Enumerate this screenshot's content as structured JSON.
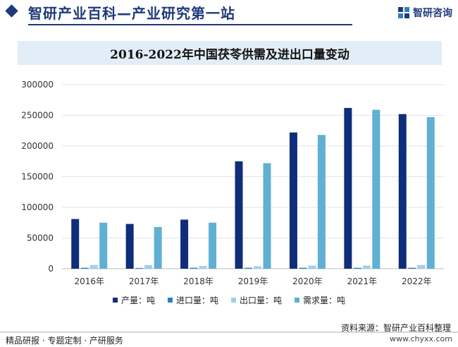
{
  "header": {
    "site_title": "智研产业百科—产业研究第一站",
    "brand_label": "智研咨询",
    "logo_icon": "zhiyan-logo-icon"
  },
  "colors": {
    "production": "#0f2d7a",
    "import": "#2f7fbf",
    "export": "#9fd0ea",
    "demand": "#5fb0d2",
    "title_band": "#e3edf7"
  },
  "chart_data": {
    "type": "bar",
    "title": "2016-2022年中国茯苓供需及进出口量变动",
    "categories": [
      "2016年",
      "2017年",
      "2018年",
      "2019年",
      "2020年",
      "2021年",
      "2022年"
    ],
    "series": [
      {
        "name": "产量：吨",
        "values": [
          81000,
          73000,
          80000,
          175000,
          222000,
          262000,
          252000
        ]
      },
      {
        "name": "进口量：吨",
        "values": [
          1500,
          1200,
          1500,
          1500,
          1500,
          1500,
          1500
        ]
      },
      {
        "name": "出口量：吨",
        "values": [
          6000,
          6000,
          4500,
          4000,
          5000,
          5000,
          6000
        ]
      },
      {
        "name": "需求量：吨",
        "values": [
          75000,
          68000,
          75000,
          172000,
          218000,
          259000,
          247000
        ]
      }
    ],
    "ylim": [
      0,
      300000
    ],
    "yticks": [
      "0",
      "50000",
      "100000",
      "150000",
      "200000",
      "250000",
      "300000"
    ],
    "grid": true,
    "legend_position": "bottom"
  },
  "footer": {
    "source": "资料来源：智研产业百科整理",
    "left": "精品研报 · 专题定制 · 产研服务",
    "right": "www.chyxx.com"
  }
}
